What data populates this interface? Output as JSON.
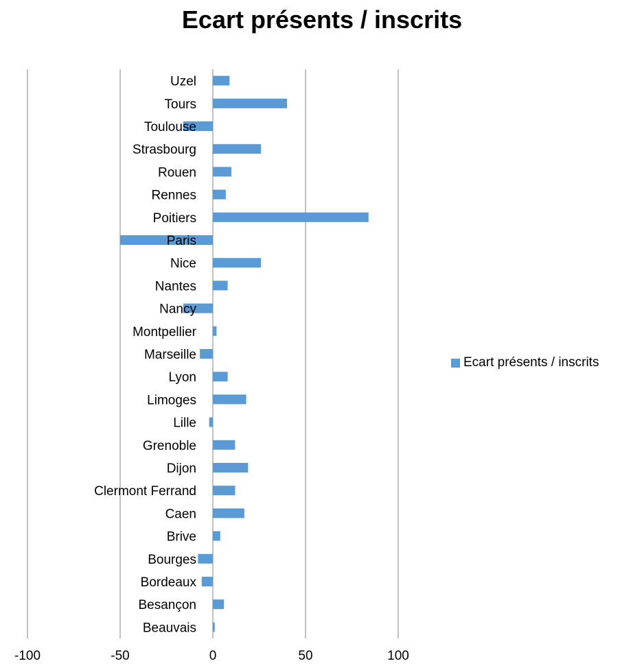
{
  "chart_data": {
    "type": "bar",
    "orientation": "horizontal",
    "title": "Ecart présents / inscrits",
    "categories": [
      "Uzel",
      "Tours",
      "Toulouse",
      "Strasbourg",
      "Rouen",
      "Rennes",
      "Poitiers",
      "Paris",
      "Nice",
      "Nantes",
      "Nancy",
      "Montpellier",
      "Marseille",
      "Lyon",
      "Limoges",
      "Lille",
      "Grenoble",
      "Dijon",
      "Clermont Ferrand",
      "Caen",
      "Brive",
      "Bourges",
      "Bordeaux",
      "Besançon",
      "Beauvais"
    ],
    "series": [
      {
        "name": "Ecart présents / inscrits",
        "color": "#5b9bd5",
        "values": [
          9,
          40,
          -16,
          26,
          10,
          7,
          84,
          -50,
          26,
          8,
          -16,
          2,
          -7,
          8,
          18,
          -2,
          12,
          19,
          12,
          17,
          4,
          -8,
          -6,
          6,
          1
        ]
      }
    ],
    "xlim": [
      -100,
      100
    ],
    "xticks": [
      -100,
      -50,
      0,
      50,
      100
    ],
    "xtick_labels": [
      "-100",
      "-50",
      "0",
      "50",
      "100"
    ],
    "grid": "vertical",
    "gridline_color": "#868686",
    "legend_position": "right"
  }
}
